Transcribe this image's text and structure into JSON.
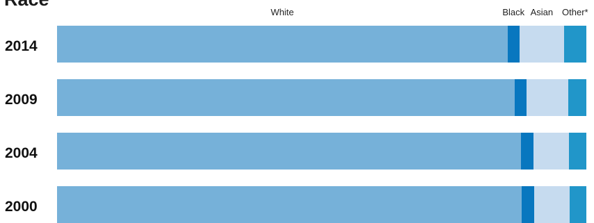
{
  "chart_data": {
    "type": "bar",
    "orientation": "horizontal",
    "stacked": true,
    "normalized": "percent",
    "title": "Race",
    "categories": [
      "2014",
      "2009",
      "2004",
      "2000"
    ],
    "series": [
      {
        "name": "White",
        "color": "#76b1d9",
        "values": [
          85.1,
          86.4,
          87.6,
          87.8
        ]
      },
      {
        "name": "Black",
        "color": "#0877bf",
        "values": [
          2.3,
          2.3,
          2.4,
          2.4
        ]
      },
      {
        "name": "Asian",
        "color": "#c6dbef",
        "values": [
          8.4,
          7.9,
          6.7,
          6.7
        ]
      },
      {
        "name": "Other*",
        "color": "#2196c9",
        "values": [
          4.2,
          3.4,
          3.3,
          3.1
        ]
      }
    ],
    "legend": "top"
  }
}
